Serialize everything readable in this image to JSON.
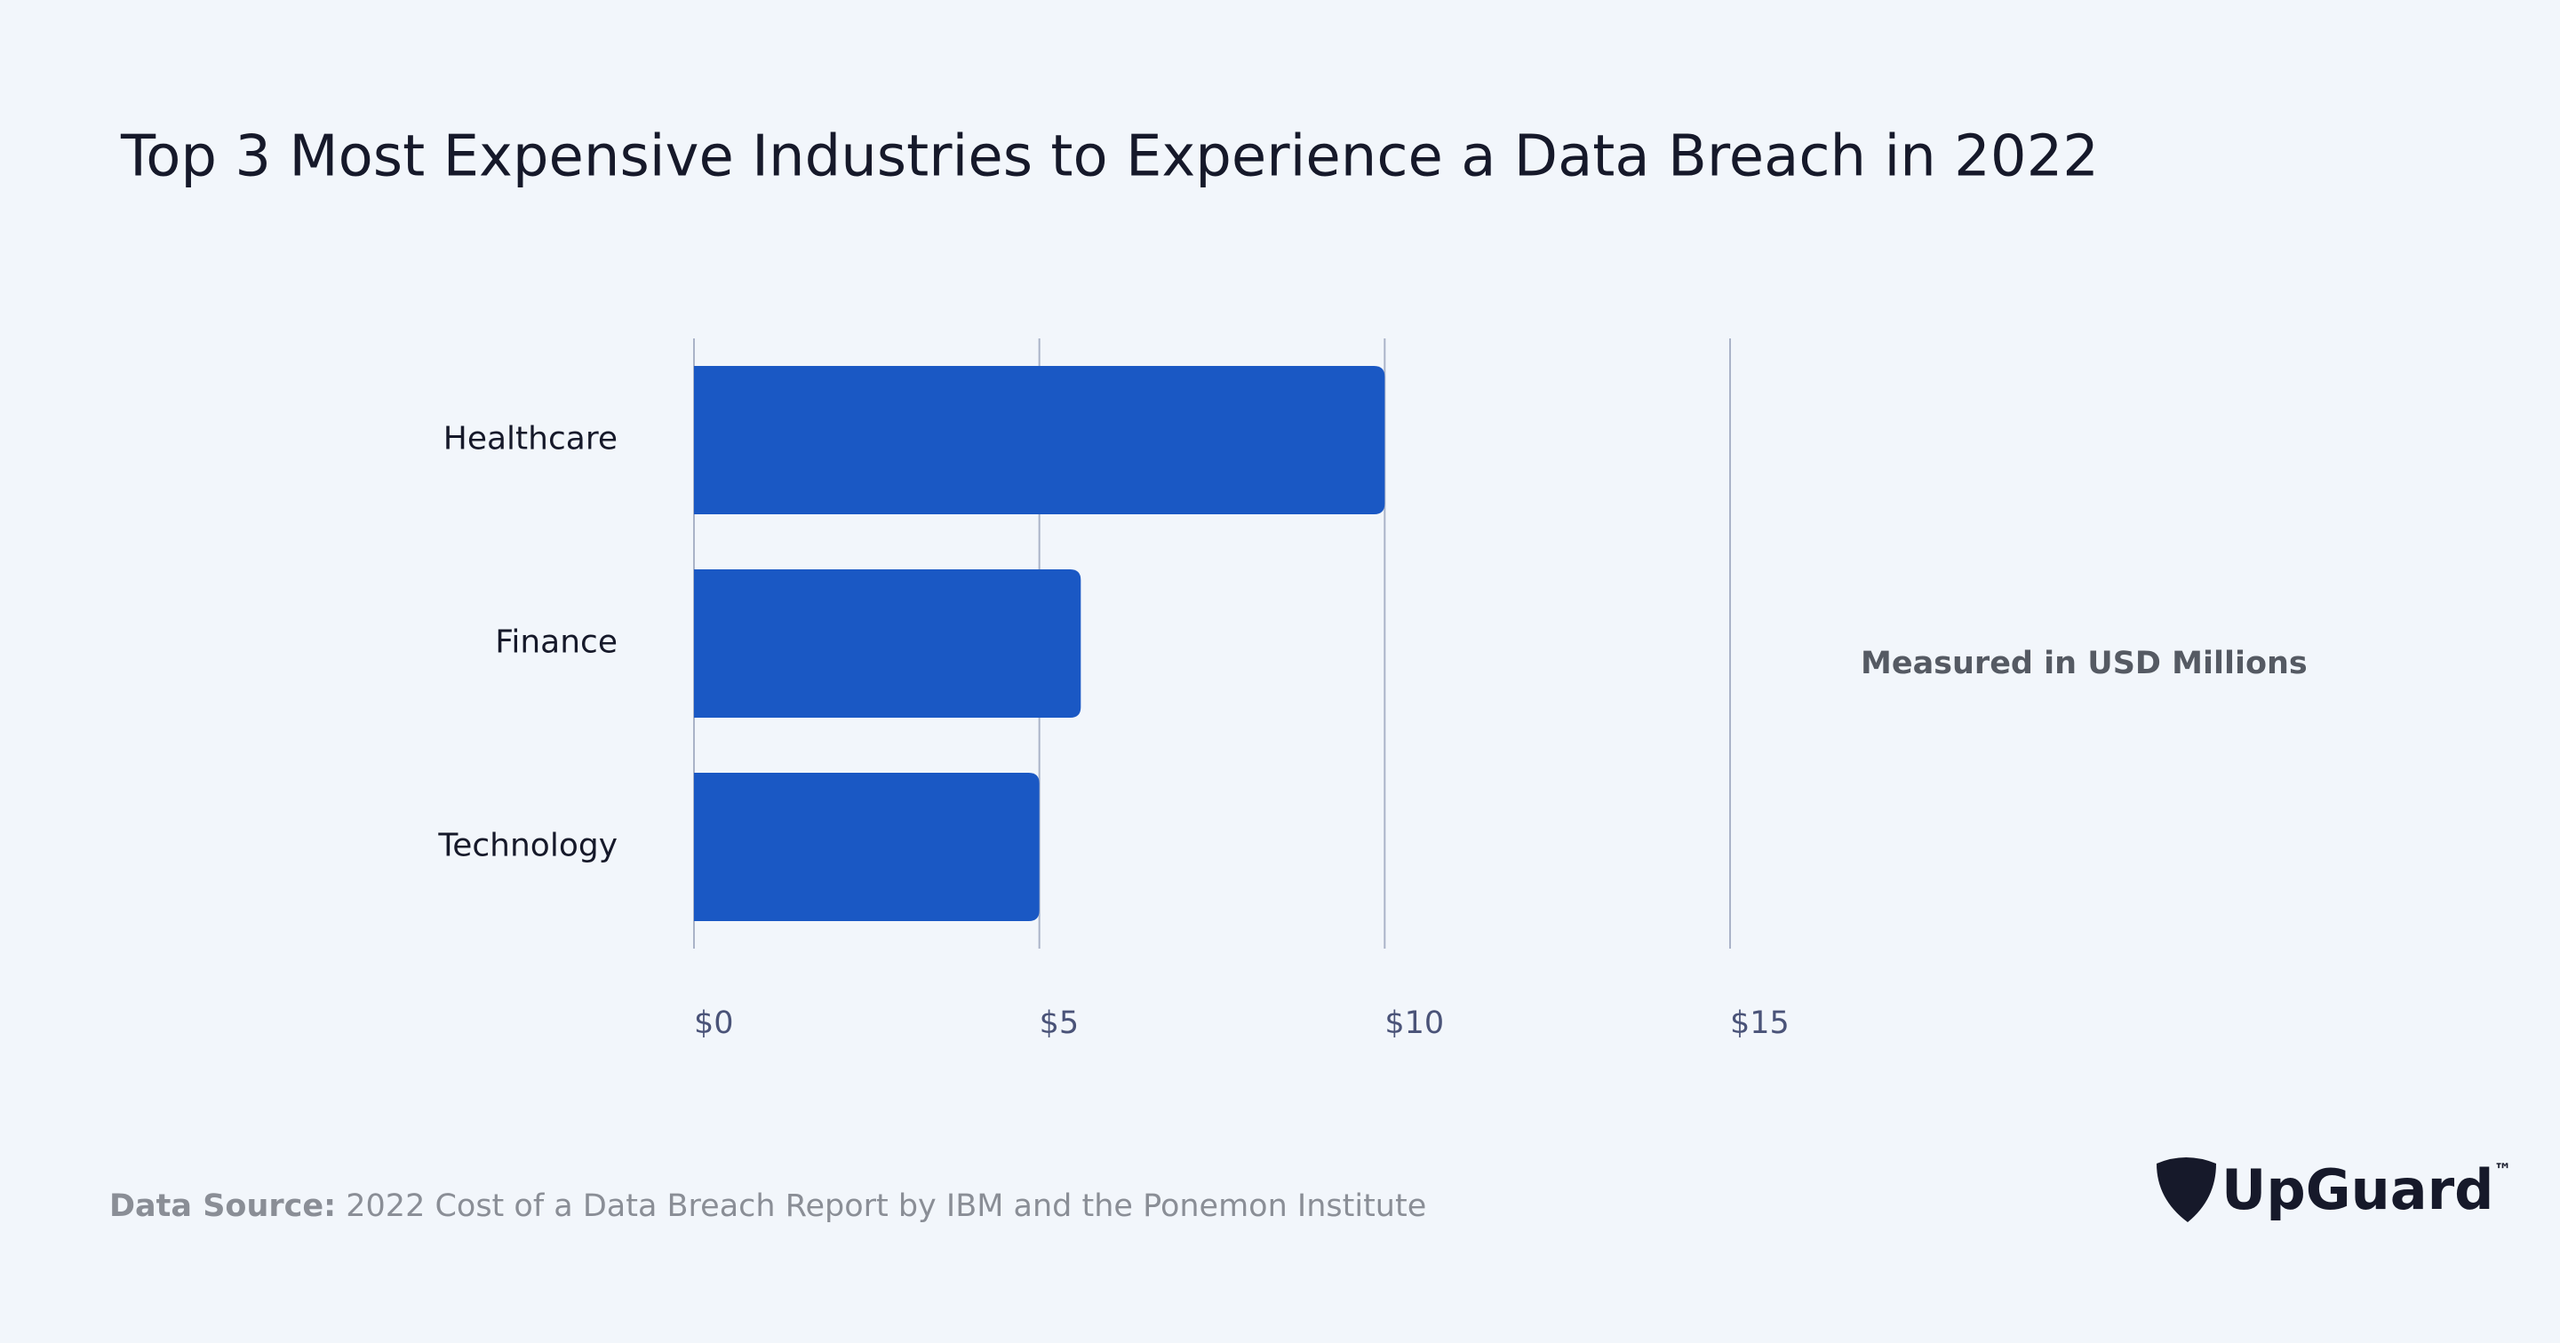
{
  "chart_data": {
    "type": "barh",
    "title": "Top 3 Most Expensive Industries to Experience a Data Breach in 2022",
    "categories": [
      "Healthcare",
      "Finance",
      "Technology"
    ],
    "values": [
      10.0,
      5.6,
      5.0
    ],
    "color": "#1a58c4",
    "xlim": [
      0,
      15
    ],
    "xticks": [
      {
        "value": 0,
        "label": "$0"
      },
      {
        "value": 5,
        "label": "$5"
      },
      {
        "value": 10,
        "label": "$10"
      },
      {
        "value": 15,
        "label": "$15"
      }
    ],
    "grid": true,
    "axis_note": "Measured in USD Millions"
  },
  "footer": {
    "source_label": "Data Source:",
    "source_text": "2022 Cost of a Data Breach Report by IBM and the Ponemon Institute",
    "logo": "UpGuard",
    "logo_mark": "™"
  }
}
